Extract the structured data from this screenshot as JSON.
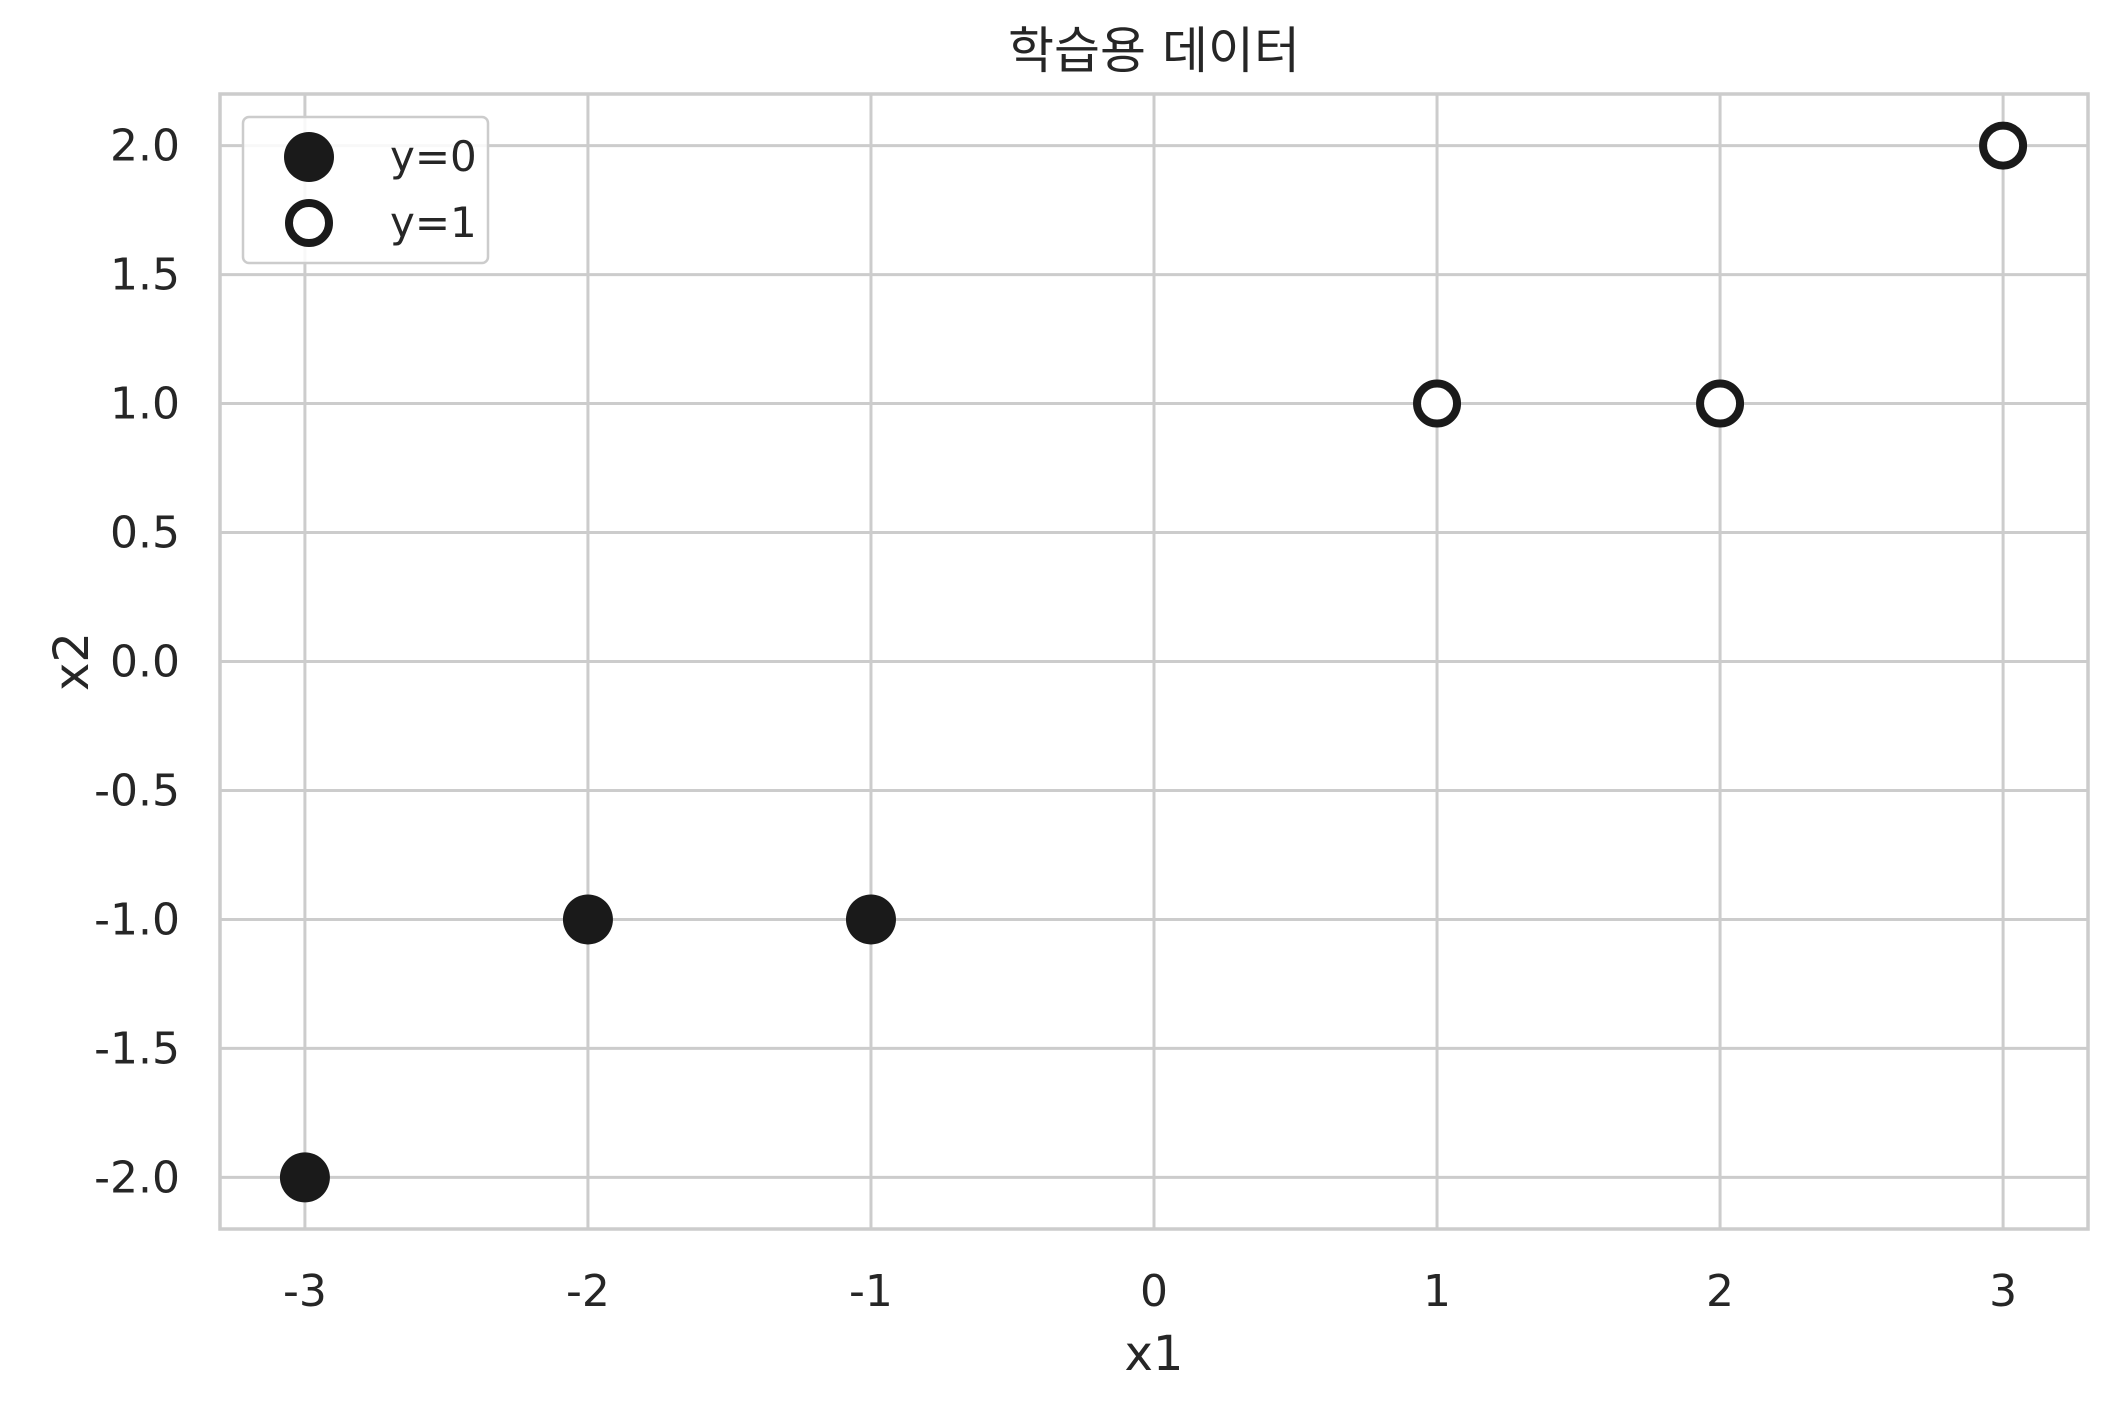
{
  "chart_data": {
    "type": "scatter",
    "title": "학습용 데이터",
    "xlabel": "x1",
    "ylabel": "x2",
    "xlim": [
      -3.3,
      3.3
    ],
    "ylim": [
      -2.2,
      2.2
    ],
    "xticks": [
      -3,
      -2,
      -1,
      0,
      1,
      2,
      3
    ],
    "xtick_labels": [
      "-3",
      "-2",
      "-1",
      "0",
      "1",
      "2",
      "3"
    ],
    "yticks": [
      2.0,
      1.5,
      1.0,
      0.5,
      0.0,
      -0.5,
      -1.0,
      -1.5,
      -2.0
    ],
    "ytick_labels": [
      "2.0",
      "1.5",
      "1.0",
      "0.5",
      "0.0",
      "-0.5",
      "-1.0",
      "-1.5",
      "-2.0"
    ],
    "grid": true,
    "legend_position": "top-left",
    "series": [
      {
        "name": "y=0",
        "marker": "filled-circle",
        "color": "#1a1a1a",
        "points": [
          {
            "x": -3,
            "y": -2
          },
          {
            "x": -2,
            "y": -1
          },
          {
            "x": -1,
            "y": -1
          }
        ]
      },
      {
        "name": "y=1",
        "marker": "open-circle",
        "color": "#1a1a1a",
        "points": [
          {
            "x": 1,
            "y": 1
          },
          {
            "x": 2,
            "y": 1
          },
          {
            "x": 3,
            "y": 2
          }
        ]
      }
    ],
    "colors": {
      "grid": "#cccccc",
      "frame": "#cccccc",
      "text": "#262626",
      "marker": "#1a1a1a",
      "background": "#ffffff"
    }
  }
}
